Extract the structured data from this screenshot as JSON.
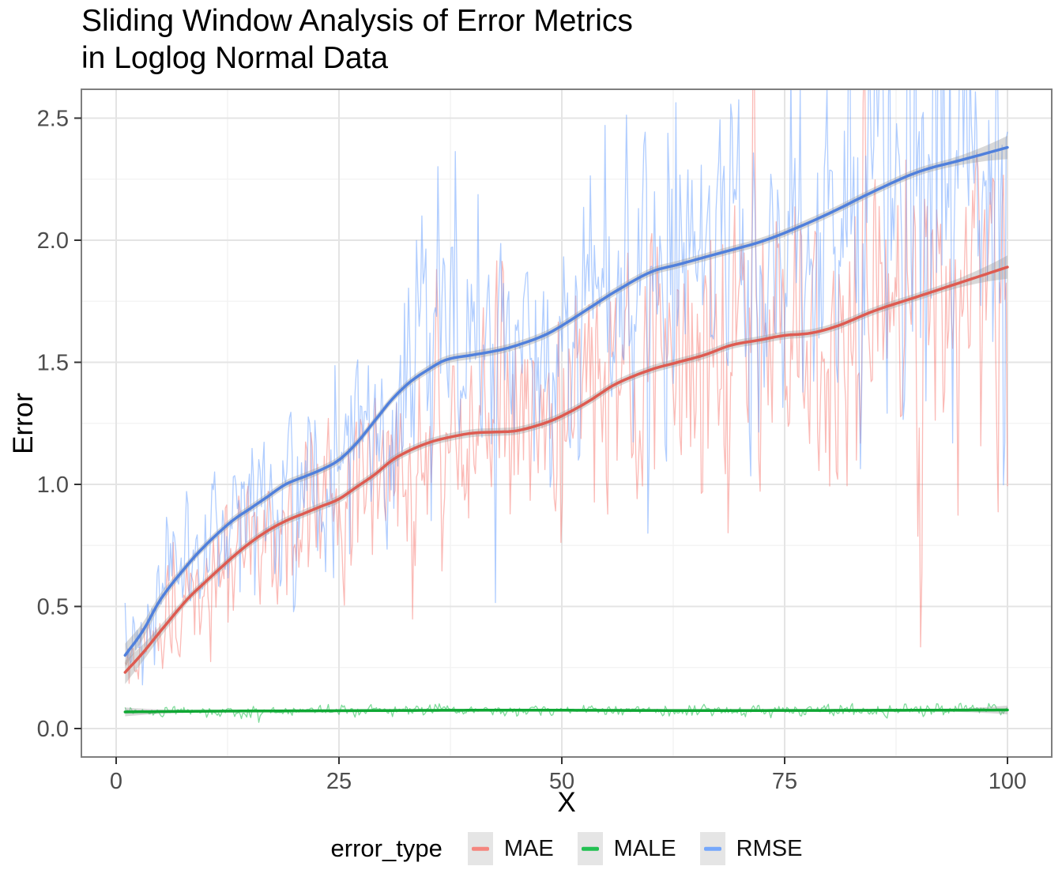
{
  "title": "Sliding Window Analysis of Error Metrics\nin Loglog Normal Data",
  "axes": {
    "x_label": "X",
    "y_label": "Error",
    "x_ticks": [
      "0",
      "25",
      "50",
      "75",
      "100"
    ],
    "x_tick_values": [
      0,
      25,
      50,
      75,
      100
    ],
    "x_minor_values": [
      12.5,
      37.5,
      62.5,
      87.5
    ],
    "y_ticks": [
      "0.0",
      "0.5",
      "1.0",
      "1.5",
      "2.0",
      "2.5"
    ],
    "y_tick_values": [
      0.0,
      0.5,
      1.0,
      1.5,
      2.0,
      2.5
    ],
    "y_minor_values": [
      0.25,
      0.75,
      1.25,
      1.75,
      2.25
    ]
  },
  "legend": {
    "title": "error_type",
    "entries": [
      {
        "label": "MAE",
        "color": "#F8766D"
      },
      {
        "label": "MALE",
        "color": "#00BA38"
      },
      {
        "label": "RMSE",
        "color": "#619CFF"
      }
    ]
  },
  "colors": {
    "grid_major": "#E4E4E4",
    "grid_minor": "#F2F2F2",
    "panel_border": "#7E7E7E",
    "tick_mark": "#333333",
    "tick_label": "#4D4D4D",
    "ribbon": "#9E9E9E"
  },
  "chart_data": {
    "type": "line",
    "title": "Sliding Window Analysis of Error Metrics in Loglog Normal Data",
    "xlabel": "X",
    "ylabel": "Error",
    "xlim": [
      -4,
      105
    ],
    "ylim": [
      -0.12,
      2.62
    ],
    "grid": true,
    "legend_position": "bottom",
    "description": "Three noisy error-metric traces (alpha ~0.5) with loess smooth trend lines and thin grey confidence ribbons.",
    "noisy_line_alpha": 0.5,
    "x_start": 1,
    "x_end": 100,
    "x_step": 0.15,
    "series": [
      {
        "name": "MAE",
        "color": "#F8766D",
        "smooth_color": "#DE5B51",
        "smooth": [
          [
            1,
            0.23
          ],
          [
            3,
            0.31
          ],
          [
            5,
            0.4
          ],
          [
            8,
            0.53
          ],
          [
            10,
            0.6
          ],
          [
            13,
            0.7
          ],
          [
            15,
            0.76
          ],
          [
            17,
            0.81
          ],
          [
            19,
            0.85
          ],
          [
            21,
            0.88
          ],
          [
            23,
            0.91
          ],
          [
            25,
            0.94
          ],
          [
            27,
            0.99
          ],
          [
            29,
            1.04
          ],
          [
            31,
            1.1
          ],
          [
            33,
            1.14
          ],
          [
            35,
            1.17
          ],
          [
            37,
            1.19
          ],
          [
            40,
            1.21
          ],
          [
            43,
            1.215
          ],
          [
            45,
            1.22
          ],
          [
            48,
            1.25
          ],
          [
            50,
            1.28
          ],
          [
            53,
            1.34
          ],
          [
            56,
            1.41
          ],
          [
            60,
            1.47
          ],
          [
            63,
            1.5
          ],
          [
            66,
            1.53
          ],
          [
            69,
            1.57
          ],
          [
            72,
            1.59
          ],
          [
            75,
            1.61
          ],
          [
            78,
            1.62
          ],
          [
            81,
            1.65
          ],
          [
            85,
            1.71
          ],
          [
            90,
            1.77
          ],
          [
            95,
            1.83
          ],
          [
            100,
            1.89
          ]
        ],
        "noise": {
          "seed": 90,
          "sd_base": 0.045,
          "sd_rel": 0.155,
          "spike_prob": 0.08,
          "spike_mult": 2.1
        }
      },
      {
        "name": "MALE",
        "color": "#00BA38",
        "smooth_color": "#0FA834",
        "smooth": [
          [
            1,
            0.068
          ],
          [
            10,
            0.071
          ],
          [
            25,
            0.073
          ],
          [
            40,
            0.075
          ],
          [
            50,
            0.075
          ],
          [
            60,
            0.074
          ],
          [
            75,
            0.074
          ],
          [
            90,
            0.075
          ],
          [
            100,
            0.076
          ]
        ],
        "noise": {
          "seed": 23,
          "sd_base": 0.011,
          "sd_rel": 0.0,
          "spike_prob": 0.05,
          "spike_mult": 1.8
        }
      },
      {
        "name": "RMSE",
        "color": "#619CFF",
        "smooth_color": "#5080DC",
        "smooth": [
          [
            1,
            0.3
          ],
          [
            3,
            0.4
          ],
          [
            5,
            0.53
          ],
          [
            8,
            0.67
          ],
          [
            10,
            0.75
          ],
          [
            13,
            0.85
          ],
          [
            15,
            0.9
          ],
          [
            17,
            0.95
          ],
          [
            19,
            1.0
          ],
          [
            21,
            1.03
          ],
          [
            23,
            1.06
          ],
          [
            25,
            1.1
          ],
          [
            27,
            1.17
          ],
          [
            29,
            1.26
          ],
          [
            31,
            1.35
          ],
          [
            33,
            1.42
          ],
          [
            35,
            1.47
          ],
          [
            37,
            1.51
          ],
          [
            40,
            1.53
          ],
          [
            43,
            1.55
          ],
          [
            45,
            1.57
          ],
          [
            48,
            1.61
          ],
          [
            50,
            1.65
          ],
          [
            53,
            1.72
          ],
          [
            56,
            1.79
          ],
          [
            60,
            1.87
          ],
          [
            63,
            1.9
          ],
          [
            66,
            1.93
          ],
          [
            69,
            1.96
          ],
          [
            72,
            1.99
          ],
          [
            75,
            2.03
          ],
          [
            80,
            2.11
          ],
          [
            85,
            2.2
          ],
          [
            90,
            2.28
          ],
          [
            95,
            2.33
          ],
          [
            100,
            2.38
          ]
        ],
        "noise": {
          "seed": 7,
          "sd_base": 0.045,
          "sd_rel": 0.155,
          "spike_prob": 0.08,
          "spike_mult": 2.1
        }
      }
    ]
  }
}
